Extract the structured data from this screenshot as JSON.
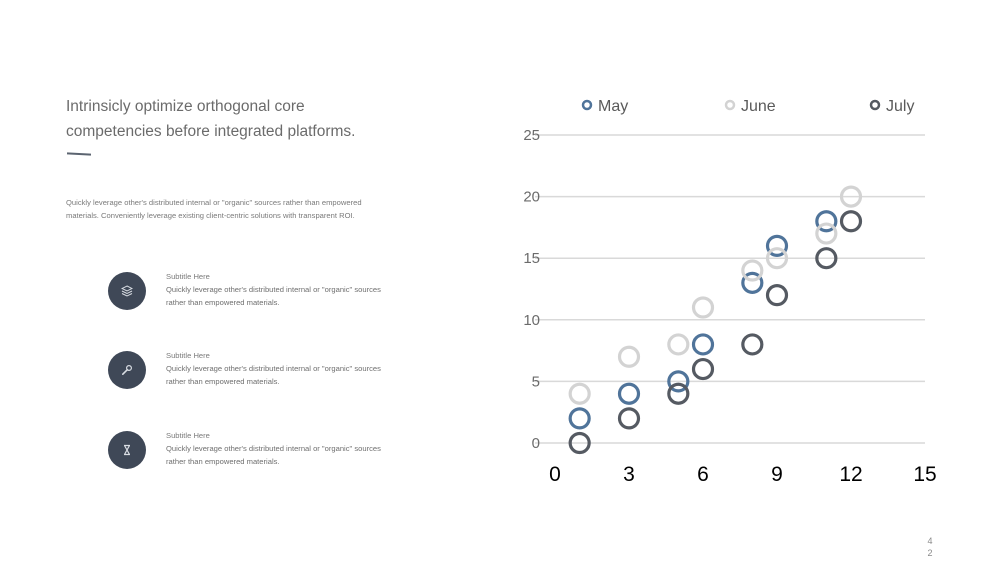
{
  "headline": "Intrinsicly optimize orthogonal core competencies before integrated platforms.",
  "intro": "Quickly leverage  other's distributed internal or \"organic\" sources rather than empowered  materials.  Conveniently  leverage  existing client-centric solutions with transparent ROI.",
  "features": [
    {
      "icon": "layers-icon",
      "title": "Subtitle Here",
      "body": "Quickly leverage  other's distributed internal or \"organic\" sources rather than empowered  materials."
    },
    {
      "icon": "wrench-icon",
      "title": "Subtitle Here",
      "body": "Quickly leverage  other's distributed internal or \"organic\" sources rather than empowered  materials."
    },
    {
      "icon": "hourglass-icon",
      "title": "Subtitle Here",
      "body": "Quickly leverage  other's distributed internal or \"organic\" sources rather than empowered  materials."
    }
  ],
  "page_number": {
    "line1": "4",
    "line2": "2"
  },
  "chart_data": {
    "type": "scatter",
    "legend_position": "top",
    "grid": true,
    "xlim": [
      0,
      15
    ],
    "ylim": [
      0,
      25
    ],
    "x_ticks": [
      0,
      3,
      6,
      9,
      12,
      15
    ],
    "y_ticks": [
      0,
      5,
      10,
      15,
      20,
      25
    ],
    "series": [
      {
        "name": "May",
        "color": "#50749a",
        "points": [
          [
            1,
            2
          ],
          [
            3,
            4
          ],
          [
            5,
            5
          ],
          [
            6,
            8
          ],
          [
            8,
            13
          ],
          [
            9,
            16
          ],
          [
            11,
            18
          ]
        ]
      },
      {
        "name": "June",
        "color": "#d3d3d3",
        "points": [
          [
            1,
            4
          ],
          [
            3,
            7
          ],
          [
            5,
            8
          ],
          [
            6,
            11
          ],
          [
            8,
            14
          ],
          [
            9,
            15
          ],
          [
            11,
            17
          ],
          [
            12,
            20
          ]
        ]
      },
      {
        "name": "July",
        "color": "#555a62",
        "points": [
          [
            1,
            0
          ],
          [
            3,
            2
          ],
          [
            5,
            4
          ],
          [
            6,
            6
          ],
          [
            8,
            8
          ],
          [
            9,
            12
          ],
          [
            11,
            15
          ],
          [
            12,
            18
          ]
        ]
      }
    ]
  }
}
